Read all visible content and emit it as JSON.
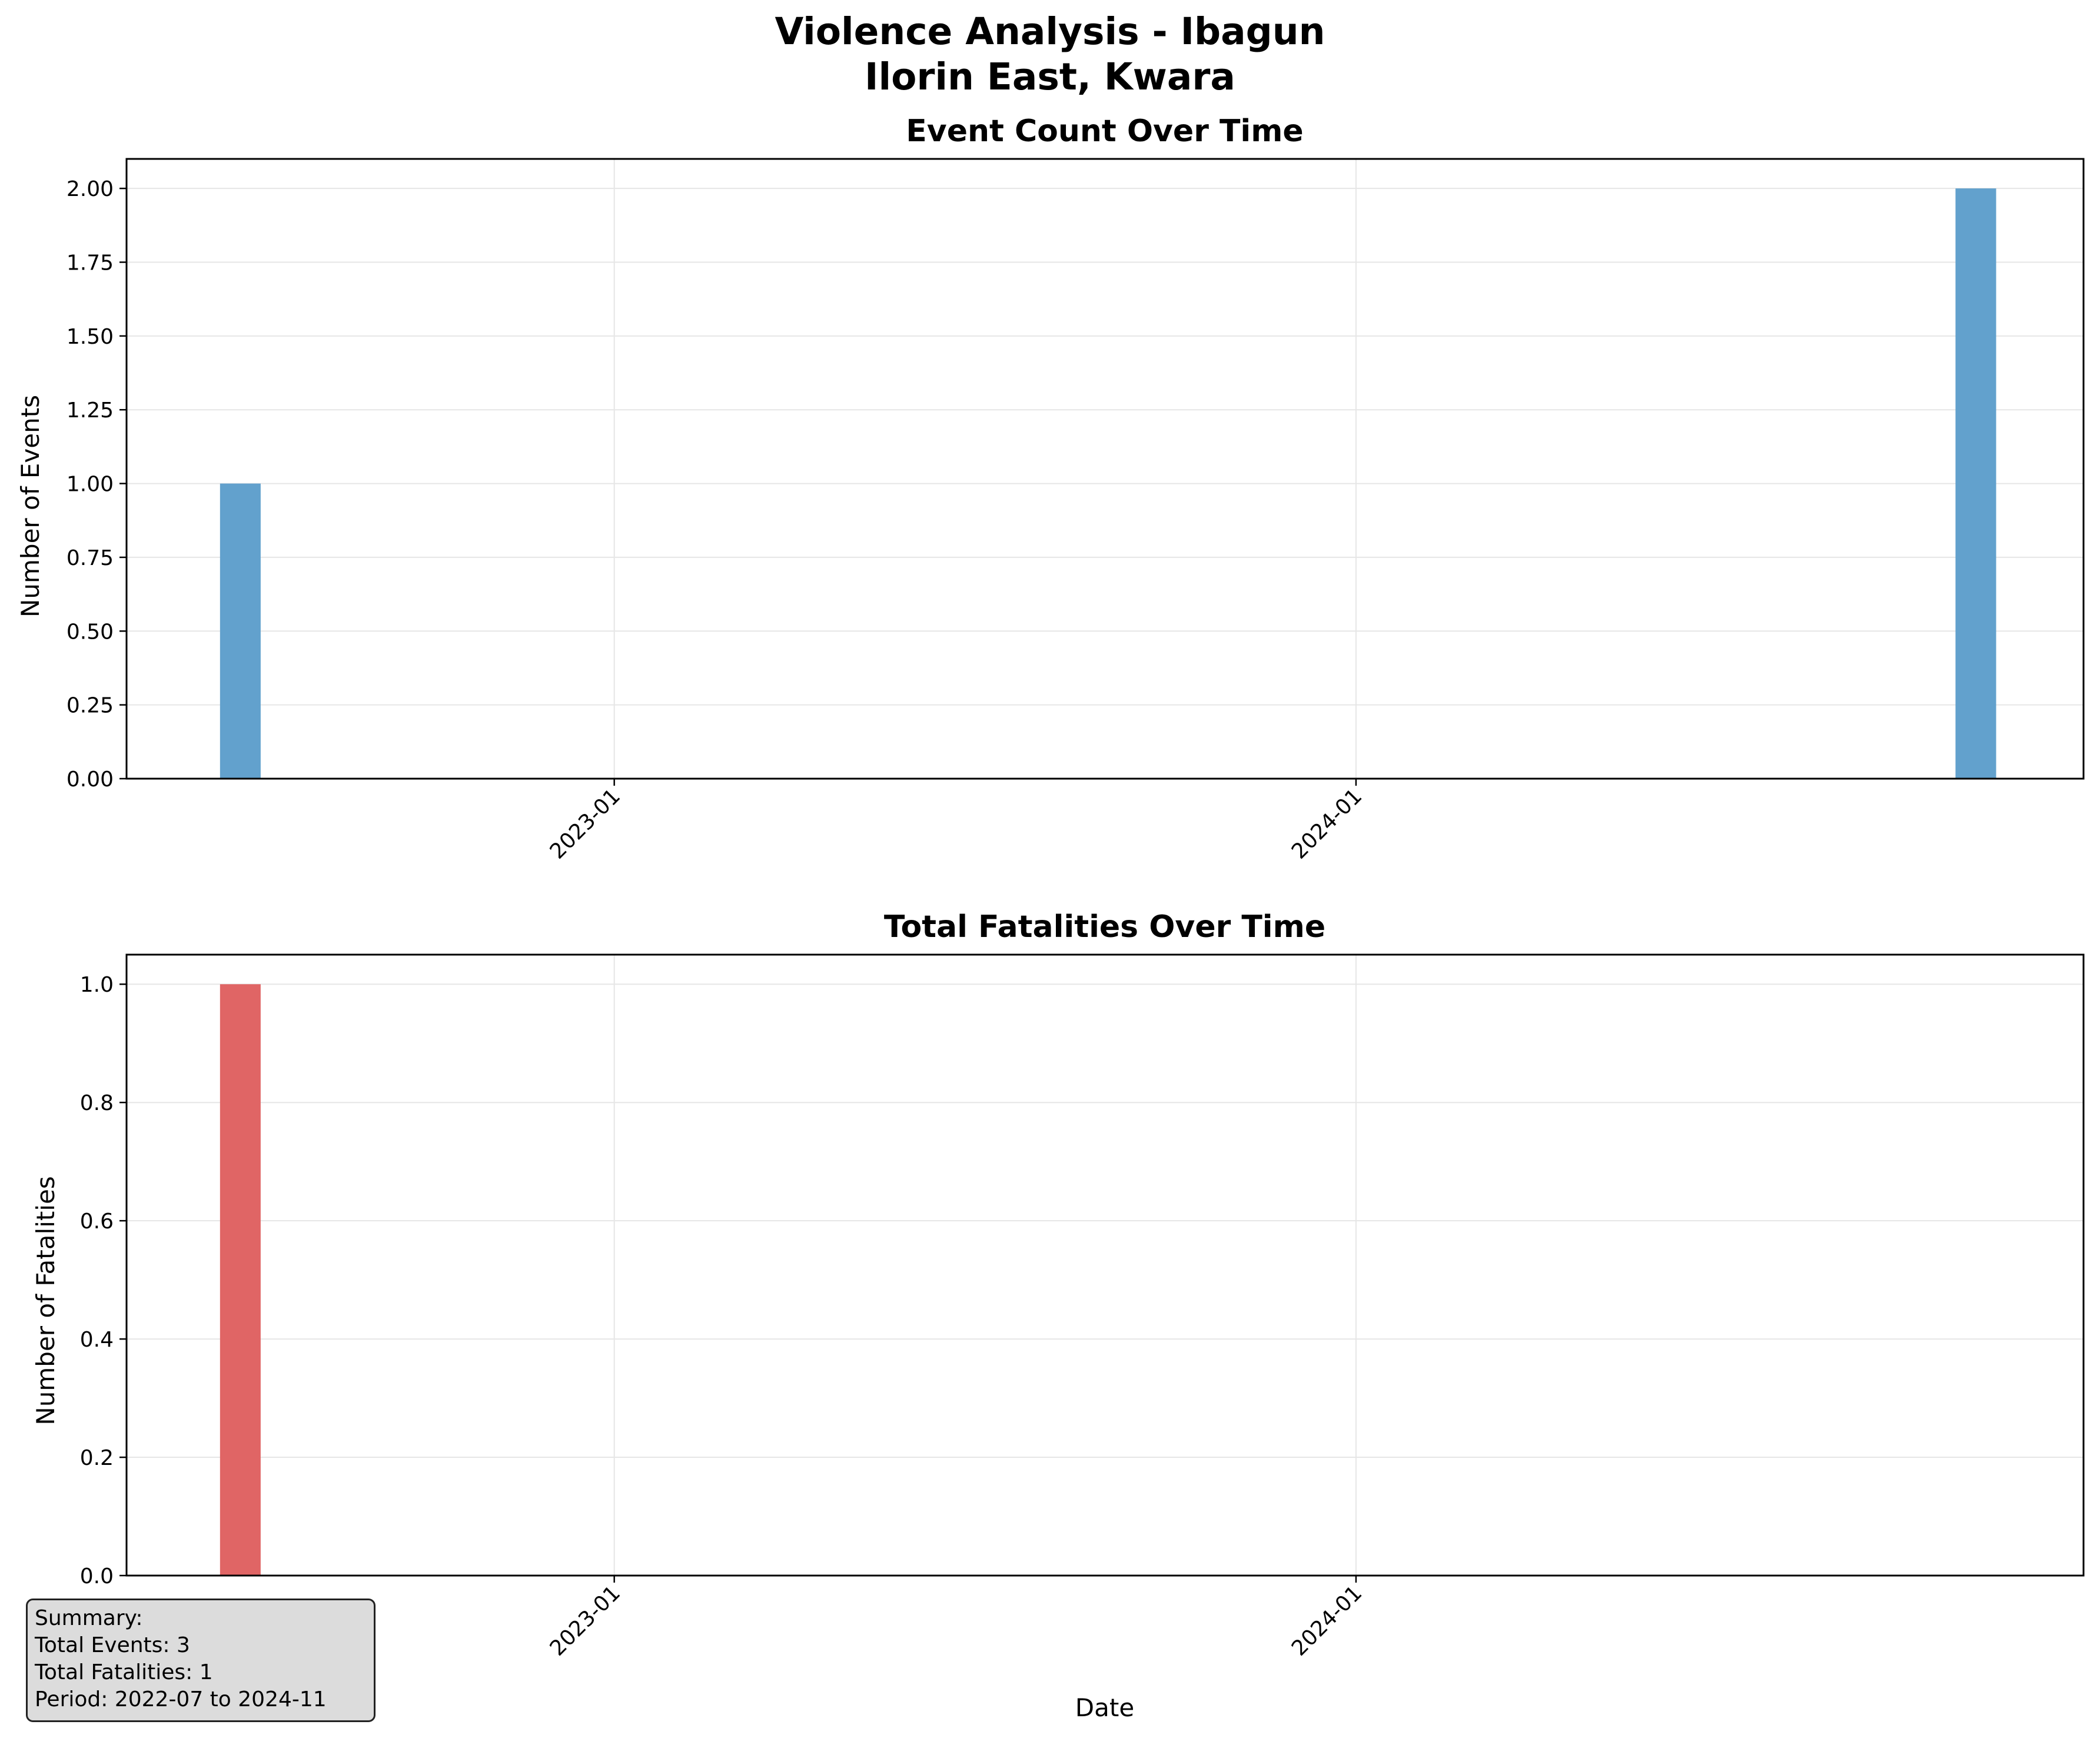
{
  "suptitle": [
    "Violence Analysis - Ibagun",
    "Ilorin East, Kwara"
  ],
  "colors": {
    "events": "#62a1cd",
    "fatalities": "#e06565",
    "grid": "#e6e6e6",
    "axis": "#000000"
  },
  "chart_data": [
    {
      "type": "bar",
      "title": "Event Count Over Time",
      "xlabel": "",
      "ylabel": "Number of Events",
      "x_ticks": [
        "2023-01",
        "2024-01"
      ],
      "y_ticks": [
        "0.00",
        "0.25",
        "0.50",
        "0.75",
        "1.00",
        "1.25",
        "1.50",
        "1.75",
        "2.00"
      ],
      "ylim": [
        0,
        2.1
      ],
      "xlim": [
        "2022-05-06",
        "2024-12-24"
      ],
      "grid": true,
      "categories": [
        "2022-07",
        "2024-11"
      ],
      "values": [
        1,
        2
      ]
    },
    {
      "type": "bar",
      "title": "Total Fatalities Over Time",
      "xlabel": "Date",
      "ylabel": "Number of Fatalities",
      "x_ticks": [
        "2023-01",
        "2024-01"
      ],
      "y_ticks": [
        "0.0",
        "0.2",
        "0.4",
        "0.6",
        "0.8",
        "1.0"
      ],
      "ylim": [
        0,
        1.05
      ],
      "xlim": [
        "2022-05-06",
        "2024-12-24"
      ],
      "grid": true,
      "categories": [
        "2022-07"
      ],
      "values": [
        1
      ]
    }
  ],
  "summary": {
    "heading": "Summary:",
    "total_events": "Total Events: 3",
    "total_fatalities": "Total Fatalities: 1",
    "period": "Period: 2022-07 to 2024-11"
  }
}
